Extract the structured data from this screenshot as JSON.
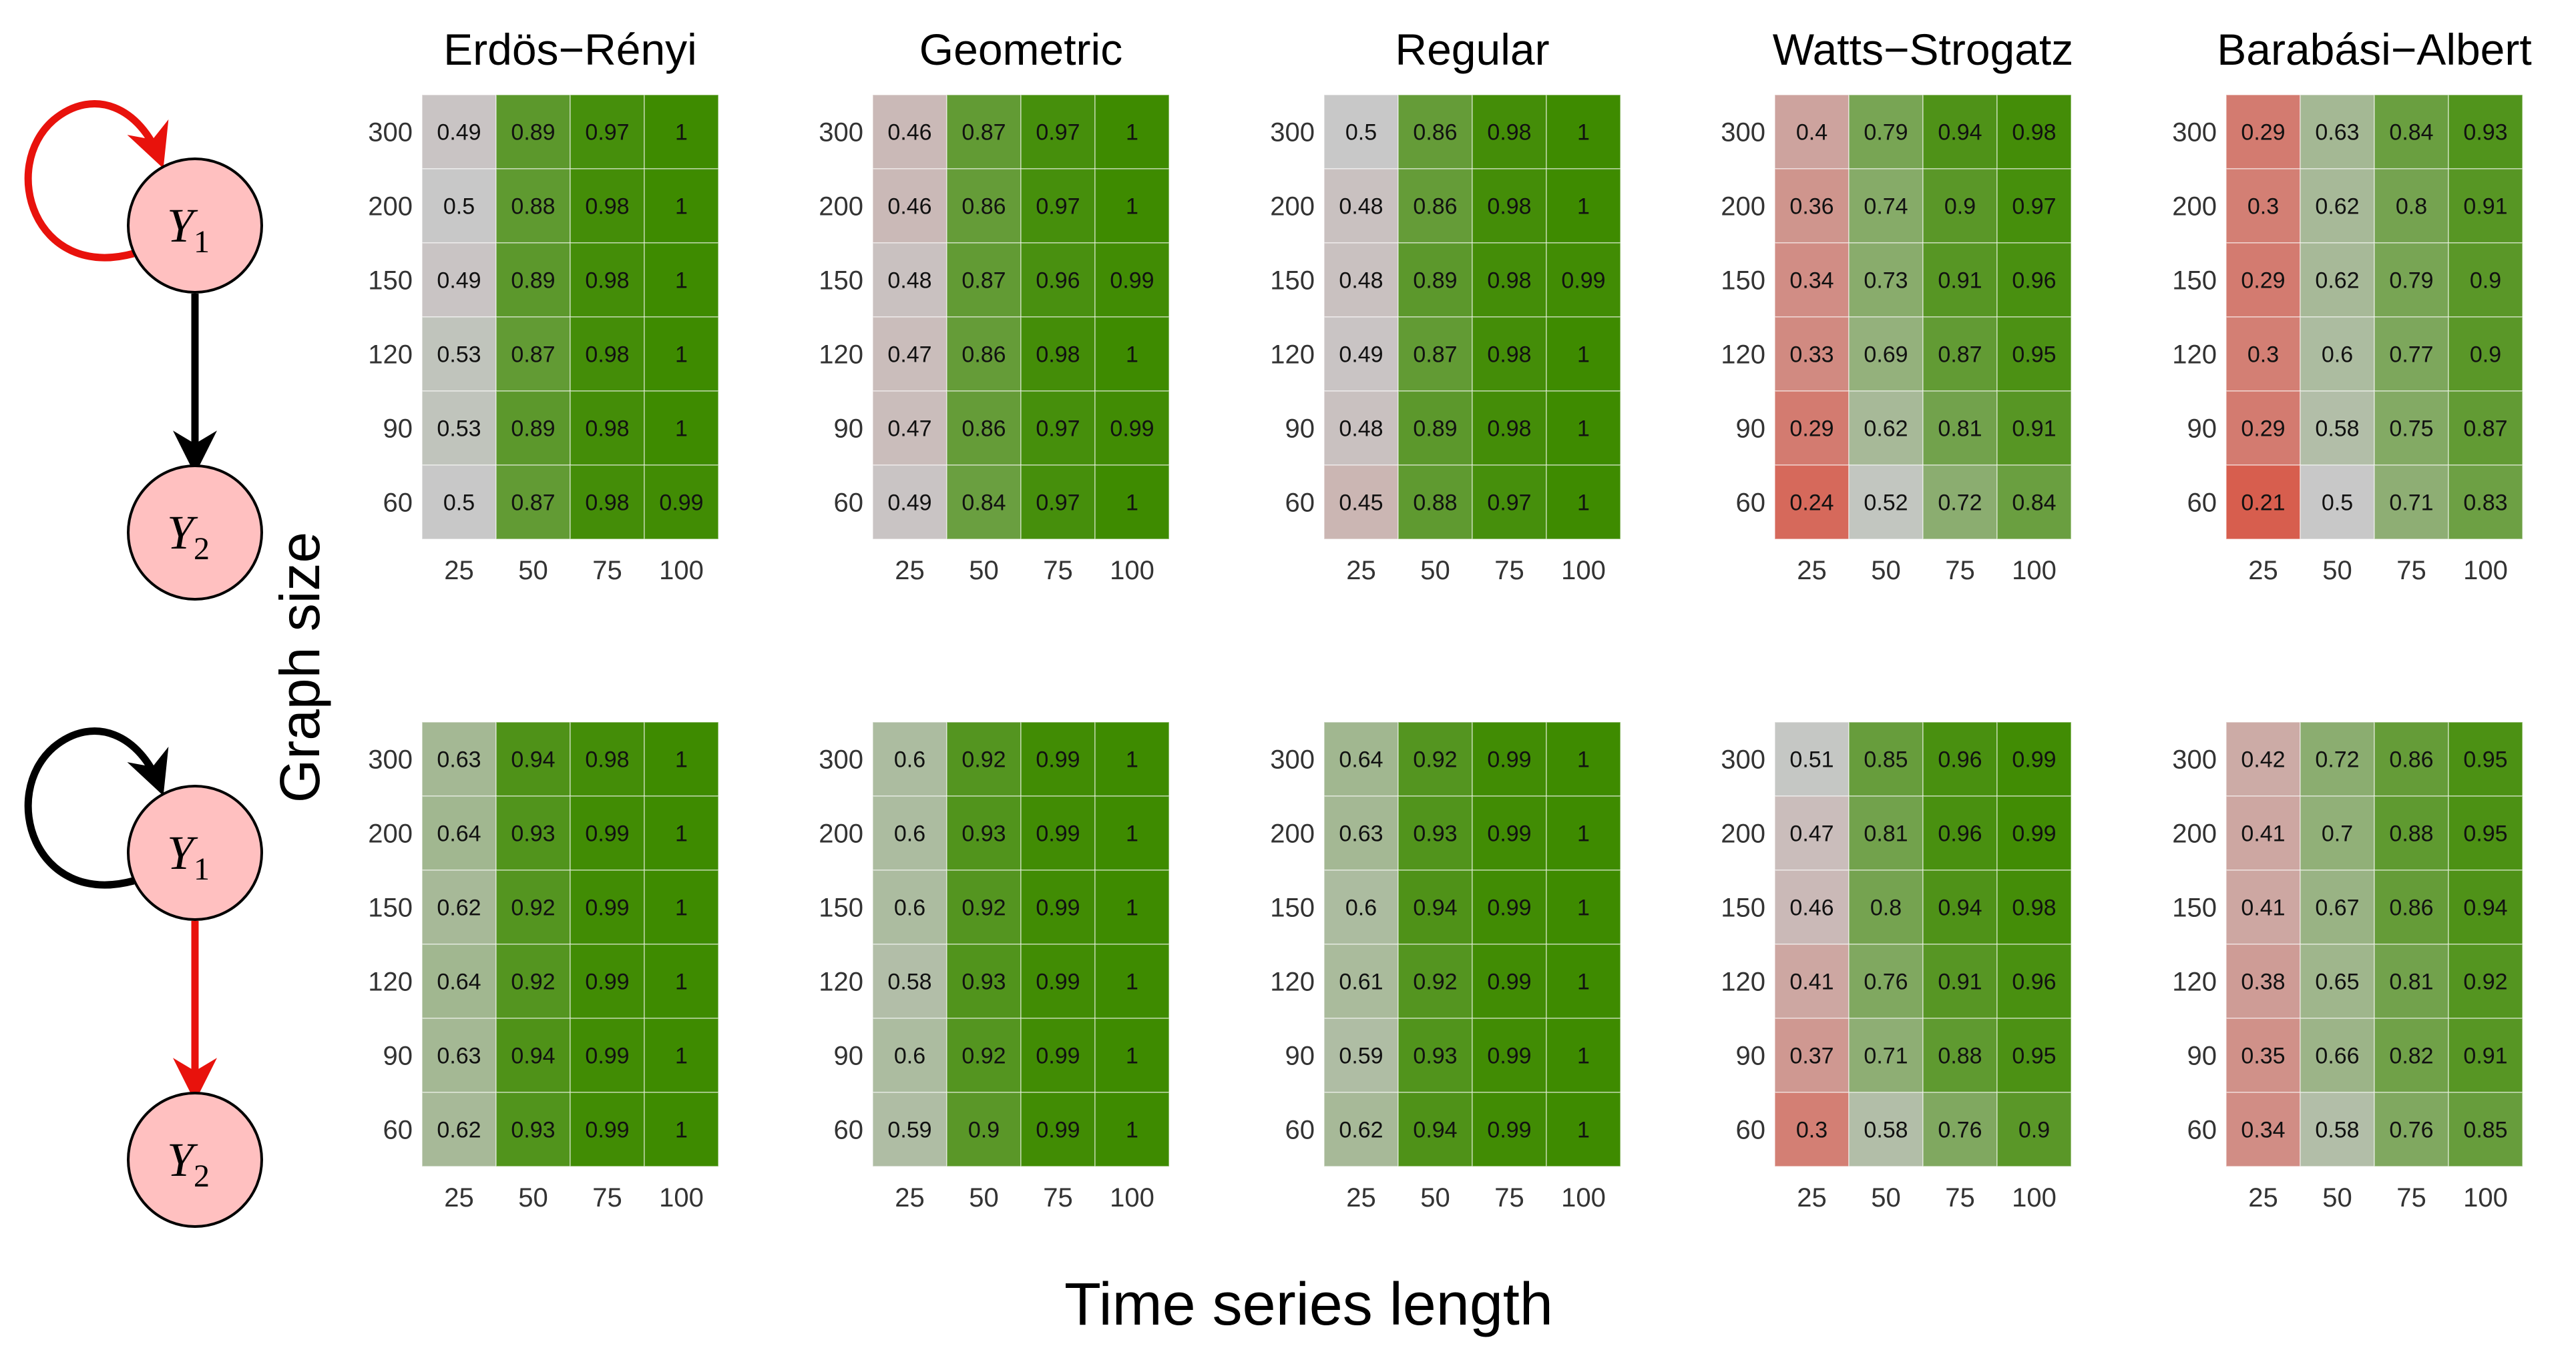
{
  "axis_labels": {
    "y": "Graph size",
    "x": "Time series length"
  },
  "chart_data": {
    "type": "heatmap",
    "x_ticks": [
      "25",
      "50",
      "75",
      "100"
    ],
    "y_ticks": [
      "300",
      "200",
      "150",
      "120",
      "90",
      "60"
    ],
    "xlabel": "Time series length",
    "ylabel": "Graph size",
    "titles": [
      "Erdös−Rényi",
      "Geometric",
      "Regular",
      "Watts−Strogatz",
      "Barabási−Albert"
    ],
    "color_scale": {
      "low": "#d85a4a",
      "mid": "#c8c8c8",
      "high": "#3e8b00",
      "low_value": 0.2,
      "mid_value": 0.5,
      "high_value": 1.0
    },
    "rows": [
      {
        "diagram": {
          "node_top": "Y",
          "node_top_sub": "1",
          "node_bottom": "Y",
          "node_bottom_sub": "2",
          "highlight": "self-loop"
        },
        "panels": [
          {
            "values": [
              [
                "0.49",
                "0.89",
                "0.97",
                "1"
              ],
              [
                "0.5",
                "0.88",
                "0.98",
                "1"
              ],
              [
                "0.49",
                "0.89",
                "0.98",
                "1"
              ],
              [
                "0.53",
                "0.87",
                "0.98",
                "1"
              ],
              [
                "0.53",
                "0.89",
                "0.98",
                "1"
              ],
              [
                "0.5",
                "0.87",
                "0.98",
                "0.99"
              ]
            ]
          },
          {
            "values": [
              [
                "0.46",
                "0.87",
                "0.97",
                "1"
              ],
              [
                "0.46",
                "0.86",
                "0.97",
                "1"
              ],
              [
                "0.48",
                "0.87",
                "0.96",
                "0.99"
              ],
              [
                "0.47",
                "0.86",
                "0.98",
                "1"
              ],
              [
                "0.47",
                "0.86",
                "0.97",
                "0.99"
              ],
              [
                "0.49",
                "0.84",
                "0.97",
                "1"
              ]
            ]
          },
          {
            "values": [
              [
                "0.5",
                "0.86",
                "0.98",
                "1"
              ],
              [
                "0.48",
                "0.86",
                "0.98",
                "1"
              ],
              [
                "0.48",
                "0.89",
                "0.98",
                "0.99"
              ],
              [
                "0.49",
                "0.87",
                "0.98",
                "1"
              ],
              [
                "0.48",
                "0.89",
                "0.98",
                "1"
              ],
              [
                "0.45",
                "0.88",
                "0.97",
                "1"
              ]
            ]
          },
          {
            "values": [
              [
                "0.4",
                "0.79",
                "0.94",
                "0.98"
              ],
              [
                "0.36",
                "0.74",
                "0.9",
                "0.97"
              ],
              [
                "0.34",
                "0.73",
                "0.91",
                "0.96"
              ],
              [
                "0.33",
                "0.69",
                "0.87",
                "0.95"
              ],
              [
                "0.29",
                "0.62",
                "0.81",
                "0.91"
              ],
              [
                "0.24",
                "0.52",
                "0.72",
                "0.84"
              ]
            ]
          },
          {
            "values": [
              [
                "0.29",
                "0.63",
                "0.84",
                "0.93"
              ],
              [
                "0.3",
                "0.62",
                "0.8",
                "0.91"
              ],
              [
                "0.29",
                "0.62",
                "0.79",
                "0.9"
              ],
              [
                "0.3",
                "0.6",
                "0.77",
                "0.9"
              ],
              [
                "0.29",
                "0.58",
                "0.75",
                "0.87"
              ],
              [
                "0.21",
                "0.5",
                "0.71",
                "0.83"
              ]
            ]
          }
        ]
      },
      {
        "diagram": {
          "node_top": "Y",
          "node_top_sub": "1",
          "node_bottom": "Y",
          "node_bottom_sub": "2",
          "highlight": "edge"
        },
        "panels": [
          {
            "values": [
              [
                "0.63",
                "0.94",
                "0.98",
                "1"
              ],
              [
                "0.64",
                "0.93",
                "0.99",
                "1"
              ],
              [
                "0.62",
                "0.92",
                "0.99",
                "1"
              ],
              [
                "0.64",
                "0.92",
                "0.99",
                "1"
              ],
              [
                "0.63",
                "0.94",
                "0.99",
                "1"
              ],
              [
                "0.62",
                "0.93",
                "0.99",
                "1"
              ]
            ]
          },
          {
            "values": [
              [
                "0.6",
                "0.92",
                "0.99",
                "1"
              ],
              [
                "0.6",
                "0.93",
                "0.99",
                "1"
              ],
              [
                "0.6",
                "0.92",
                "0.99",
                "1"
              ],
              [
                "0.58",
                "0.93",
                "0.99",
                "1"
              ],
              [
                "0.6",
                "0.92",
                "0.99",
                "1"
              ],
              [
                "0.59",
                "0.9",
                "0.99",
                "1"
              ]
            ]
          },
          {
            "values": [
              [
                "0.64",
                "0.92",
                "0.99",
                "1"
              ],
              [
                "0.63",
                "0.93",
                "0.99",
                "1"
              ],
              [
                "0.6",
                "0.94",
                "0.99",
                "1"
              ],
              [
                "0.61",
                "0.92",
                "0.99",
                "1"
              ],
              [
                "0.59",
                "0.93",
                "0.99",
                "1"
              ],
              [
                "0.62",
                "0.94",
                "0.99",
                "1"
              ]
            ]
          },
          {
            "values": [
              [
                "0.51",
                "0.85",
                "0.96",
                "0.99"
              ],
              [
                "0.47",
                "0.81",
                "0.96",
                "0.99"
              ],
              [
                "0.46",
                "0.8",
                "0.94",
                "0.98"
              ],
              [
                "0.41",
                "0.76",
                "0.91",
                "0.96"
              ],
              [
                "0.37",
                "0.71",
                "0.88",
                "0.95"
              ],
              [
                "0.3",
                "0.58",
                "0.76",
                "0.9"
              ]
            ]
          },
          {
            "values": [
              [
                "0.42",
                "0.72",
                "0.86",
                "0.95"
              ],
              [
                "0.41",
                "0.7",
                "0.88",
                "0.95"
              ],
              [
                "0.41",
                "0.67",
                "0.86",
                "0.94"
              ],
              [
                "0.38",
                "0.65",
                "0.81",
                "0.92"
              ],
              [
                "0.35",
                "0.66",
                "0.82",
                "0.91"
              ],
              [
                "0.34",
                "0.58",
                "0.76",
                "0.85"
              ]
            ]
          }
        ]
      }
    ]
  }
}
